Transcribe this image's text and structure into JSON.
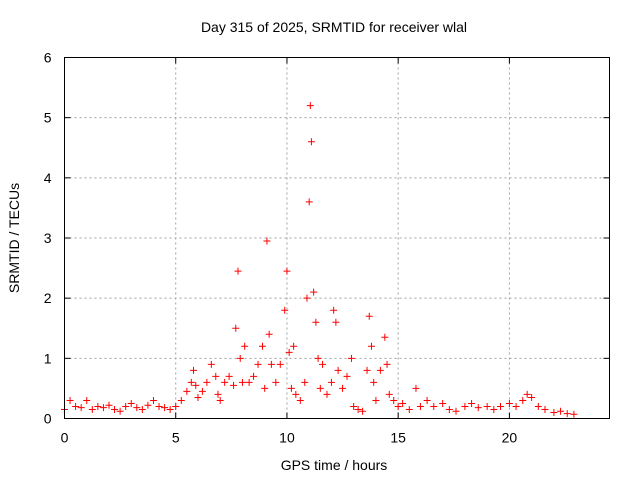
{
  "chart_data": {
    "type": "scatter",
    "title": "Day 315 of 2025, SRMTID for receiver wlal",
    "xlabel": "GPS time / hours",
    "ylabel": "SRMTID / TECUs",
    "xlim": [
      0,
      24.5
    ],
    "ylim": [
      0,
      6
    ],
    "xticks": [
      0,
      5,
      10,
      15,
      20
    ],
    "yticks": [
      0,
      1,
      2,
      3,
      4,
      5,
      6
    ],
    "grid": true,
    "marker": "+",
    "series": [
      {
        "name": "SRMTID",
        "color": "#ff0000",
        "x": [
          0.0,
          0.25,
          0.5,
          0.75,
          1.0,
          1.25,
          1.5,
          1.75,
          2.0,
          2.25,
          2.5,
          2.75,
          3.0,
          3.25,
          3.5,
          3.75,
          4.0,
          4.25,
          4.5,
          4.75,
          5.0,
          5.25,
          5.5,
          5.7,
          5.8,
          5.9,
          6.0,
          6.2,
          6.4,
          6.6,
          6.8,
          6.9,
          7.0,
          7.2,
          7.4,
          7.6,
          7.7,
          7.8,
          7.9,
          8.0,
          8.1,
          8.3,
          8.5,
          8.7,
          8.9,
          9.0,
          9.1,
          9.2,
          9.3,
          9.5,
          9.7,
          9.9,
          10.0,
          10.1,
          10.2,
          10.3,
          10.4,
          10.6,
          10.8,
          10.9,
          11.0,
          11.05,
          11.1,
          11.2,
          11.3,
          11.4,
          11.5,
          11.6,
          11.8,
          12.0,
          12.1,
          12.2,
          12.3,
          12.5,
          12.7,
          12.9,
          13.0,
          13.2,
          13.4,
          13.6,
          13.7,
          13.8,
          13.9,
          14.0,
          14.2,
          14.4,
          14.5,
          14.6,
          14.8,
          15.0,
          15.2,
          15.5,
          15.8,
          16.0,
          16.3,
          16.6,
          17.0,
          17.3,
          17.6,
          18.0,
          18.3,
          18.6,
          19.0,
          19.3,
          19.6,
          20.0,
          20.3,
          20.6,
          20.8,
          21.0,
          21.3,
          21.6,
          22.0,
          22.3,
          22.6,
          22.9
        ],
        "y": [
          0.15,
          0.3,
          0.2,
          0.18,
          0.3,
          0.15,
          0.2,
          0.18,
          0.22,
          0.15,
          0.12,
          0.2,
          0.25,
          0.18,
          0.15,
          0.22,
          0.3,
          0.2,
          0.18,
          0.15,
          0.2,
          0.3,
          0.45,
          0.6,
          0.8,
          0.55,
          0.35,
          0.45,
          0.6,
          0.9,
          0.7,
          0.4,
          0.3,
          0.6,
          0.7,
          0.55,
          1.5,
          2.45,
          1.0,
          0.6,
          1.2,
          0.6,
          0.7,
          0.9,
          1.2,
          0.5,
          2.95,
          1.4,
          0.9,
          0.6,
          0.9,
          1.8,
          2.45,
          1.1,
          0.5,
          1.2,
          0.4,
          0.3,
          0.6,
          2.0,
          3.6,
          5.2,
          4.6,
          2.1,
          1.6,
          1.0,
          0.5,
          0.9,
          0.4,
          0.6,
          1.8,
          1.6,
          0.8,
          0.5,
          0.7,
          1.0,
          0.2,
          0.15,
          0.12,
          0.8,
          1.7,
          1.2,
          0.6,
          0.3,
          0.8,
          1.35,
          0.9,
          0.4,
          0.3,
          0.2,
          0.25,
          0.15,
          0.5,
          0.2,
          0.3,
          0.2,
          0.25,
          0.15,
          0.12,
          0.2,
          0.25,
          0.18,
          0.2,
          0.15,
          0.2,
          0.25,
          0.2,
          0.3,
          0.4,
          0.35,
          0.2,
          0.15,
          0.1,
          0.12,
          0.08,
          0.07
        ]
      }
    ]
  }
}
